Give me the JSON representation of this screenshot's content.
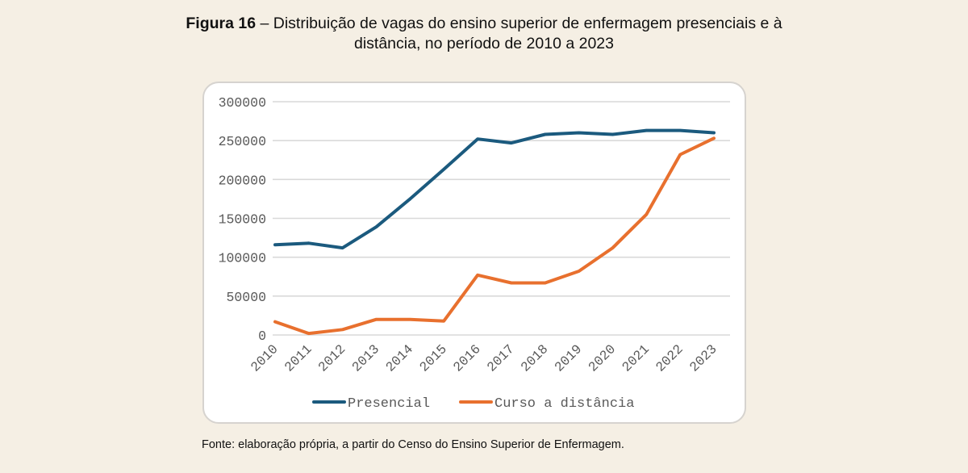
{
  "figure": {
    "title_bold": "Figura 16",
    "title_rest_line1": " – Distribuição de vagas do ensino superior de enfermagem presenciais e à",
    "title_line2": "distância, no período de 2010 a 2023",
    "source": "Fonte: elaboração própria, a partir do Censo do Ensino Superior de Enfermagem."
  },
  "chart_data": {
    "type": "line",
    "title": "Figura 16 – Distribuição de vagas do ensino superior de enfermagem presenciais e à distância, no período de 2010 a 2023",
    "xlabel": "",
    "ylabel": "",
    "x": [
      "2010",
      "2011",
      "2012",
      "2013",
      "2014",
      "2015",
      "2016",
      "2017",
      "2018",
      "2019",
      "2020",
      "2021",
      "2022",
      "2023"
    ],
    "ylim": [
      0,
      300000
    ],
    "yticks": [
      0,
      50000,
      100000,
      150000,
      200000,
      250000,
      300000
    ],
    "ytick_labels": [
      "0",
      "50000",
      "100000",
      "150000",
      "200000",
      "250000",
      "300000"
    ],
    "grid": true,
    "legend_position": "bottom",
    "series": [
      {
        "name": "Presencial",
        "color": "#1b5a7e",
        "values": [
          116000,
          118000,
          112000,
          139000,
          175000,
          213000,
          252000,
          247000,
          258000,
          260000,
          258000,
          263000,
          263000,
          260000
        ]
      },
      {
        "name": "Curso a distância",
        "color": "#e8702e",
        "values": [
          17000,
          2000,
          7000,
          20000,
          20000,
          18000,
          77000,
          67000,
          67000,
          82000,
          112000,
          155000,
          232000,
          253000
        ]
      }
    ]
  }
}
